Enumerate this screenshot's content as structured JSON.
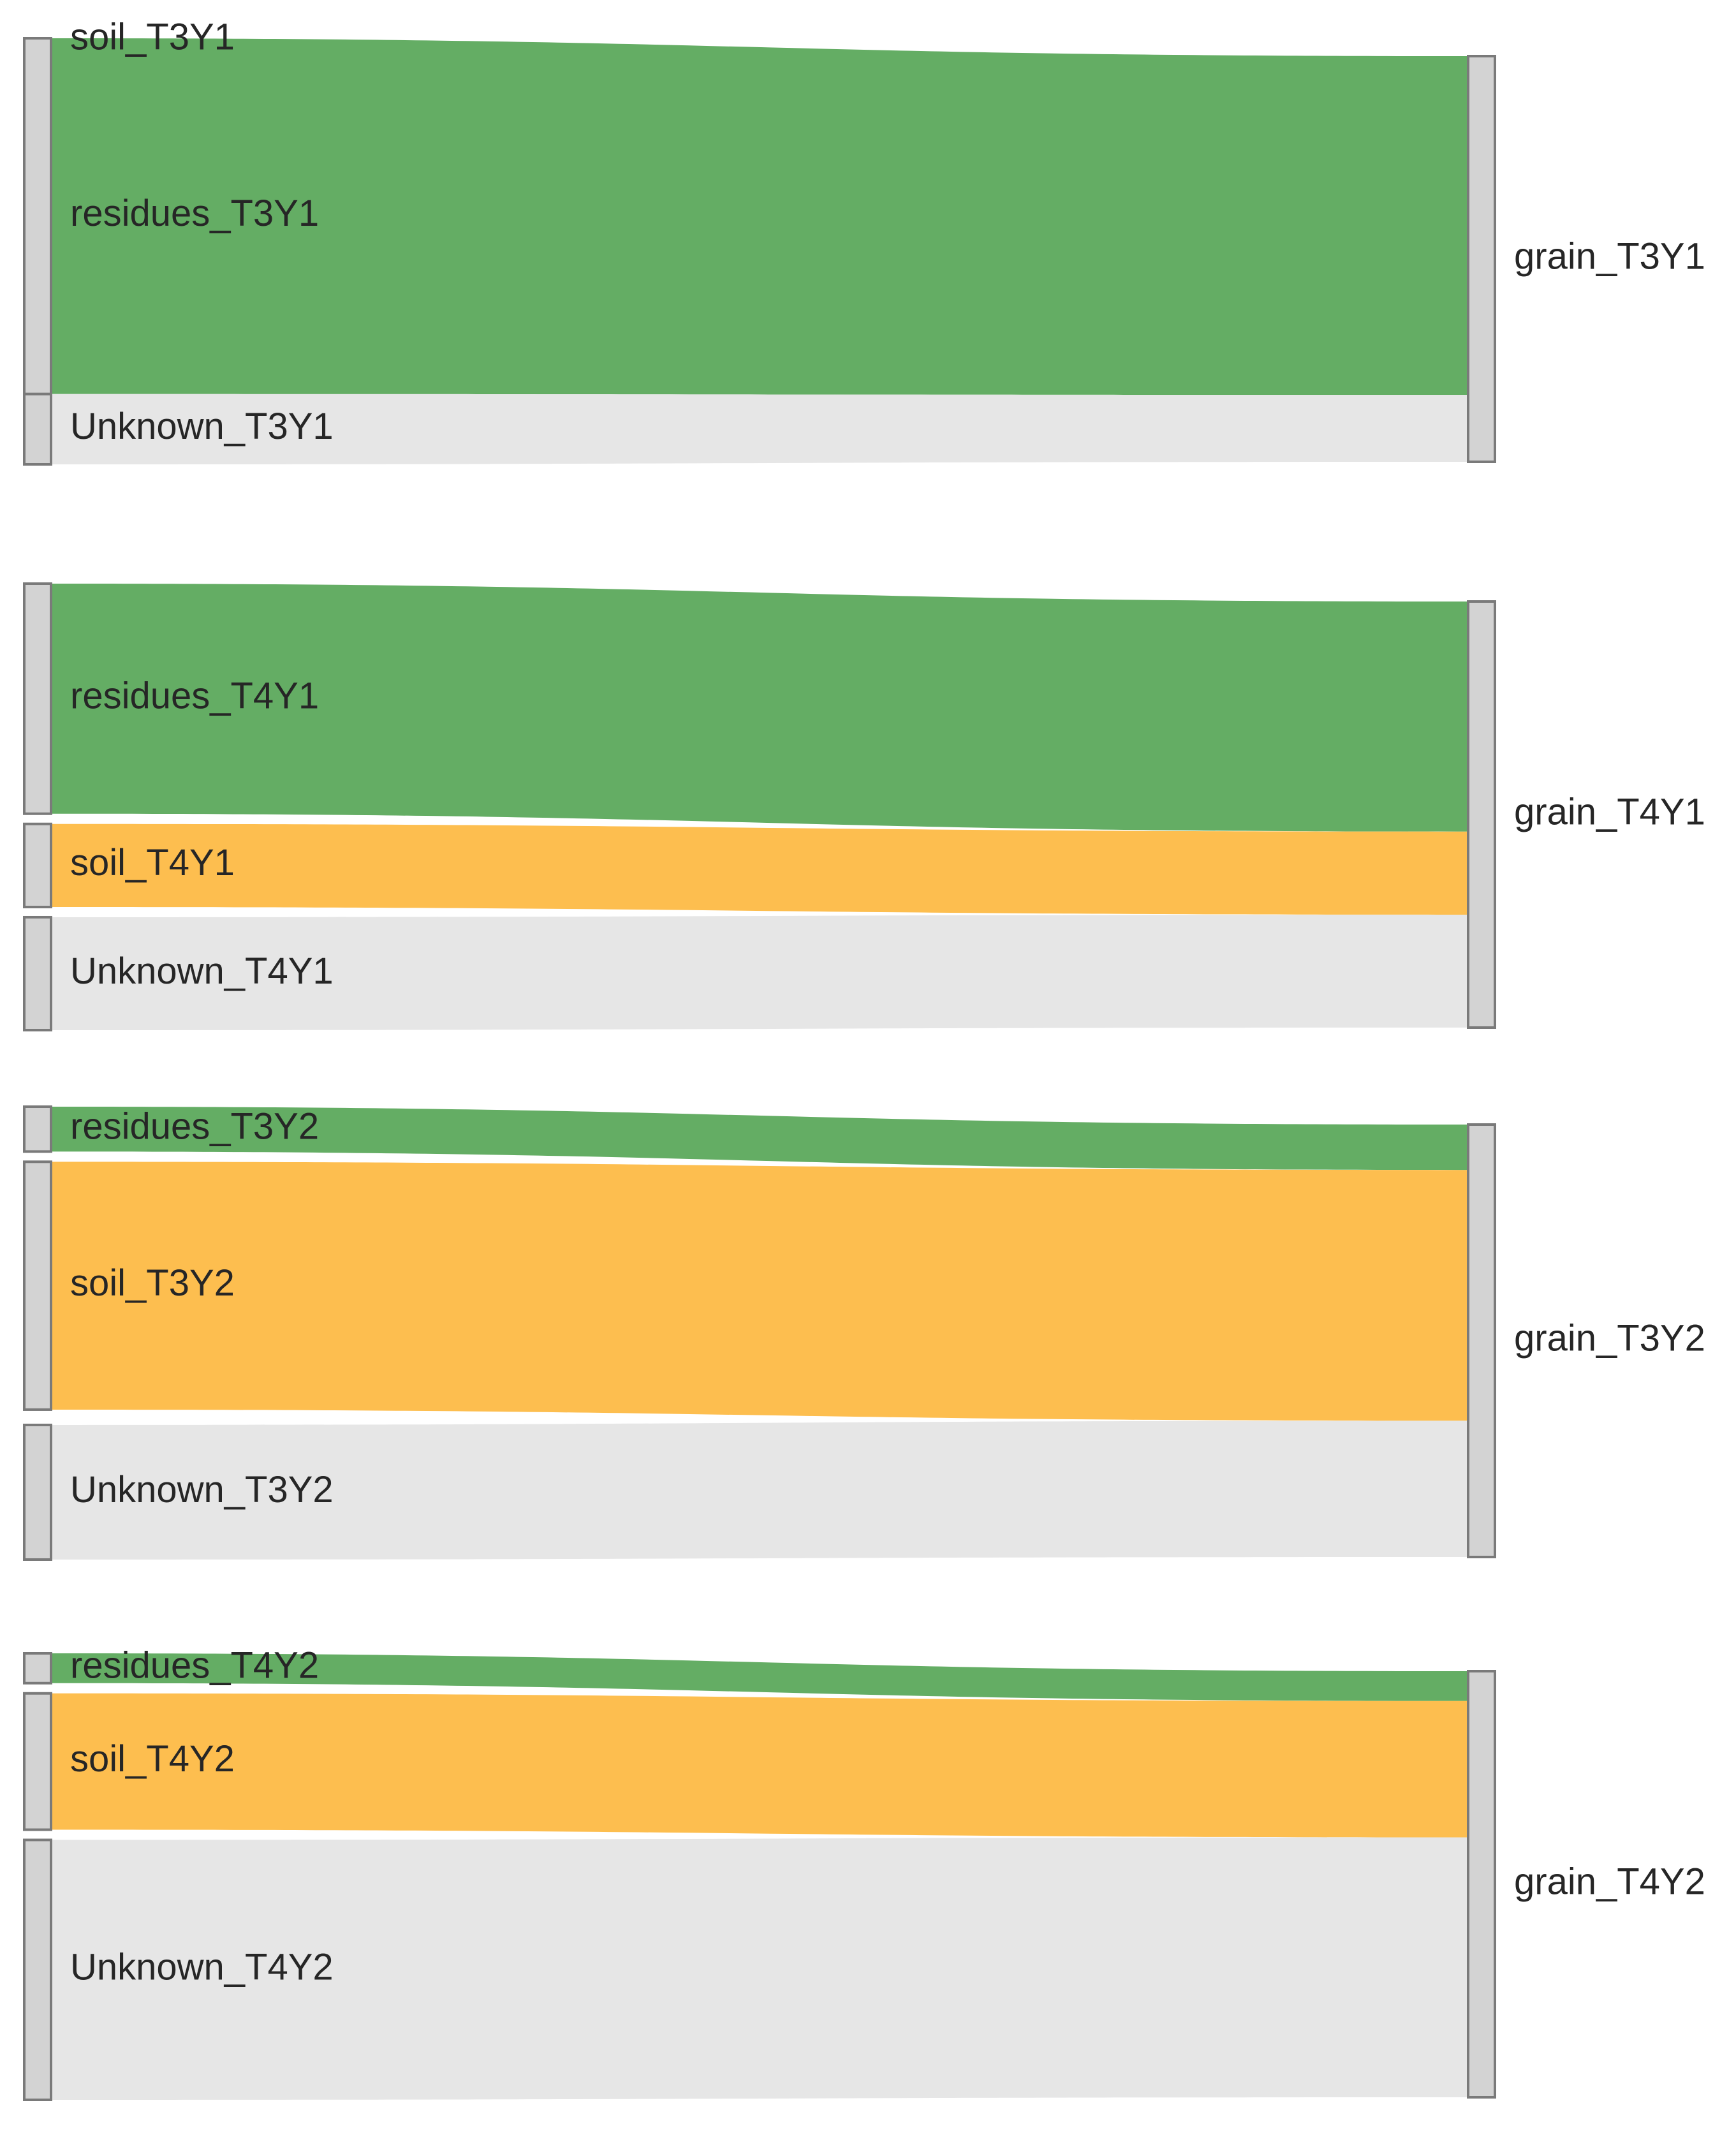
{
  "colors": {
    "residues": "#64ad64",
    "soil": "#fdbe4f",
    "Unknown": "#e6e6e6",
    "node_fill": "#d3d3d3",
    "node_stroke": "#7a7a7a"
  },
  "chart_data": [
    {
      "type": "sankey",
      "target": "grain_T3Y1",
      "sources": [
        {
          "name": "soil_T3Y1",
          "group": "soil",
          "value": 0
        },
        {
          "name": "residues_T3Y1",
          "group": "residues",
          "value": 83.5
        },
        {
          "name": "Unknown_T3Y1",
          "group": "Unknown",
          "value": 16.5
        }
      ]
    },
    {
      "type": "sankey",
      "target": "grain_T4Y1",
      "sources": [
        {
          "name": "residues_T4Y1",
          "group": "residues",
          "value": 54
        },
        {
          "name": "soil_T4Y1",
          "group": "soil",
          "value": 19.5
        },
        {
          "name": "Unknown_T4Y1",
          "group": "Unknown",
          "value": 26.5
        }
      ]
    },
    {
      "type": "sankey",
      "target": "grain_T3Y2",
      "sources": [
        {
          "name": "residues_T3Y2",
          "group": "residues",
          "value": 10.5
        },
        {
          "name": "soil_T3Y2",
          "group": "soil",
          "value": 58
        },
        {
          "name": "Unknown_T3Y2",
          "group": "Unknown",
          "value": 31.5
        }
      ]
    },
    {
      "type": "sankey",
      "target": "grain_T4Y2",
      "sources": [
        {
          "name": "residues_T4Y2",
          "group": "residues",
          "value": 7
        },
        {
          "name": "soil_T4Y2",
          "group": "soil",
          "value": 32
        },
        {
          "name": "Unknown_T4Y2",
          "group": "Unknown",
          "value": 61
        }
      ]
    }
  ]
}
